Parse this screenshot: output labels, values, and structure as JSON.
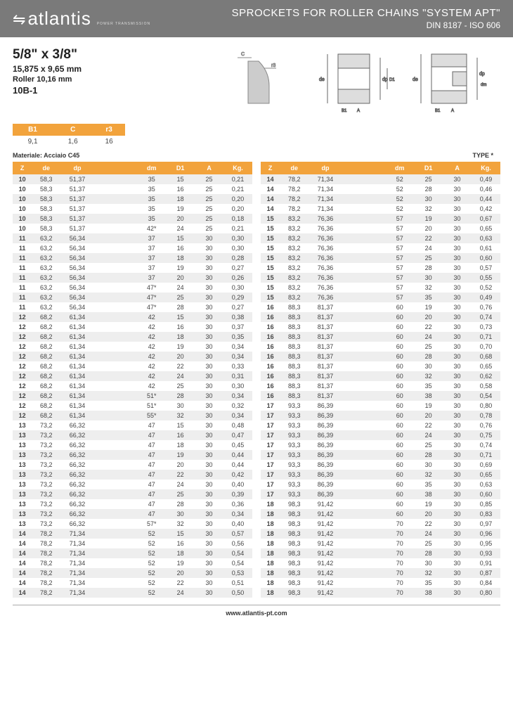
{
  "header": {
    "brand": "atlantis",
    "brand_sub": "POWER TRANSMISSION",
    "title": "SPROCKETS FOR ROLLER CHAINS \"SYSTEM APT\"",
    "subtitle": "DIN 8187 - ISO 606"
  },
  "spec": {
    "main": "5/8\" x 3/8\"",
    "sub": "15,875 x 9,65 mm",
    "roller": "Roller 10,16 mm",
    "code": "10B-1"
  },
  "mini": {
    "h": [
      "B1",
      "C",
      "r3"
    ],
    "v": [
      "9,1",
      "1,6",
      "16"
    ]
  },
  "material": "Materiale: Acciaio C45",
  "type_note": "TYPE *",
  "footer": "www.atlantis-pt.com",
  "cols": [
    "Z",
    "de",
    "dp",
    "dm",
    "D1",
    "A",
    "Kg."
  ],
  "colors": {
    "header_bg": "#7a7a7a",
    "accent": "#f2a33c",
    "row_odd": "#eeeeee",
    "row_even": "#ffffff"
  },
  "left": [
    [
      "10",
      "58,3",
      "51,37",
      "35",
      "15",
      "25",
      "0,21"
    ],
    [
      "10",
      "58,3",
      "51,37",
      "35",
      "16",
      "25",
      "0,21"
    ],
    [
      "10",
      "58,3",
      "51,37",
      "35",
      "18",
      "25",
      "0,20"
    ],
    [
      "10",
      "58,3",
      "51,37",
      "35",
      "19",
      "25",
      "0,20"
    ],
    [
      "10",
      "58,3",
      "51,37",
      "35",
      "20",
      "25",
      "0,18"
    ],
    [
      "10",
      "58,3",
      "51,37",
      "42*",
      "24",
      "25",
      "0,21"
    ],
    [
      "11",
      "63,2",
      "56,34",
      "37",
      "15",
      "30",
      "0,30"
    ],
    [
      "11",
      "63,2",
      "56,34",
      "37",
      "16",
      "30",
      "0,30"
    ],
    [
      "11",
      "63,2",
      "56,34",
      "37",
      "18",
      "30",
      "0,28"
    ],
    [
      "11",
      "63,2",
      "56,34",
      "37",
      "19",
      "30",
      "0,27"
    ],
    [
      "11",
      "63,2",
      "56,34",
      "37",
      "20",
      "30",
      "0,26"
    ],
    [
      "11",
      "63,2",
      "56,34",
      "47*",
      "24",
      "30",
      "0,30"
    ],
    [
      "11",
      "63,2",
      "56,34",
      "47*",
      "25",
      "30",
      "0,29"
    ],
    [
      "11",
      "63,2",
      "56,34",
      "47*",
      "28",
      "30",
      "0,27"
    ],
    [
      "12",
      "68,2",
      "61,34",
      "42",
      "15",
      "30",
      "0,38"
    ],
    [
      "12",
      "68,2",
      "61,34",
      "42",
      "16",
      "30",
      "0,37"
    ],
    [
      "12",
      "68,2",
      "61,34",
      "42",
      "18",
      "30",
      "0,35"
    ],
    [
      "12",
      "68,2",
      "61,34",
      "42",
      "19",
      "30",
      "0,34"
    ],
    [
      "12",
      "68,2",
      "61,34",
      "42",
      "20",
      "30",
      "0,34"
    ],
    [
      "12",
      "68,2",
      "61,34",
      "42",
      "22",
      "30",
      "0,33"
    ],
    [
      "12",
      "68,2",
      "61,34",
      "42",
      "24",
      "30",
      "0,31"
    ],
    [
      "12",
      "68,2",
      "61,34",
      "42",
      "25",
      "30",
      "0,30"
    ],
    [
      "12",
      "68,2",
      "61,34",
      "51*",
      "28",
      "30",
      "0,34"
    ],
    [
      "12",
      "68,2",
      "61,34",
      "51*",
      "30",
      "30",
      "0,32"
    ],
    [
      "12",
      "68,2",
      "61,34",
      "55*",
      "32",
      "30",
      "0,34"
    ],
    [
      "13",
      "73,2",
      "66,32",
      "47",
      "15",
      "30",
      "0,48"
    ],
    [
      "13",
      "73,2",
      "66,32",
      "47",
      "16",
      "30",
      "0,47"
    ],
    [
      "13",
      "73,2",
      "66,32",
      "47",
      "18",
      "30",
      "0,45"
    ],
    [
      "13",
      "73,2",
      "66,32",
      "47",
      "19",
      "30",
      "0,44"
    ],
    [
      "13",
      "73,2",
      "66,32",
      "47",
      "20",
      "30",
      "0,44"
    ],
    [
      "13",
      "73,2",
      "66,32",
      "47",
      "22",
      "30",
      "0,42"
    ],
    [
      "13",
      "73,2",
      "66,32",
      "47",
      "24",
      "30",
      "0,40"
    ],
    [
      "13",
      "73,2",
      "66,32",
      "47",
      "25",
      "30",
      "0,39"
    ],
    [
      "13",
      "73,2",
      "66,32",
      "47",
      "28",
      "30",
      "0,36"
    ],
    [
      "13",
      "73,2",
      "66,32",
      "47",
      "30",
      "30",
      "0,34"
    ],
    [
      "13",
      "73,2",
      "66,32",
      "57*",
      "32",
      "30",
      "0,40"
    ],
    [
      "14",
      "78,2",
      "71,34",
      "52",
      "15",
      "30",
      "0,57"
    ],
    [
      "14",
      "78,2",
      "71,34",
      "52",
      "16",
      "30",
      "0,56"
    ],
    [
      "14",
      "78,2",
      "71,34",
      "52",
      "18",
      "30",
      "0,54"
    ],
    [
      "14",
      "78,2",
      "71,34",
      "52",
      "19",
      "30",
      "0,54"
    ],
    [
      "14",
      "78,2",
      "71,34",
      "52",
      "20",
      "30",
      "0,53"
    ],
    [
      "14",
      "78,2",
      "71,34",
      "52",
      "22",
      "30",
      "0,51"
    ],
    [
      "14",
      "78,2",
      "71,34",
      "52",
      "24",
      "30",
      "0,50"
    ]
  ],
  "right": [
    [
      "14",
      "78,2",
      "71,34",
      "52",
      "25",
      "30",
      "0,49"
    ],
    [
      "14",
      "78,2",
      "71,34",
      "52",
      "28",
      "30",
      "0,46"
    ],
    [
      "14",
      "78,2",
      "71,34",
      "52",
      "30",
      "30",
      "0,44"
    ],
    [
      "14",
      "78,2",
      "71,34",
      "52",
      "32",
      "30",
      "0,42"
    ],
    [
      "15",
      "83,2",
      "76,36",
      "57",
      "19",
      "30",
      "0,67"
    ],
    [
      "15",
      "83,2",
      "76,36",
      "57",
      "20",
      "30",
      "0,65"
    ],
    [
      "15",
      "83,2",
      "76,36",
      "57",
      "22",
      "30",
      "0,63"
    ],
    [
      "15",
      "83,2",
      "76,36",
      "57",
      "24",
      "30",
      "0,61"
    ],
    [
      "15",
      "83,2",
      "76,36",
      "57",
      "25",
      "30",
      "0,60"
    ],
    [
      "15",
      "83,2",
      "76,36",
      "57",
      "28",
      "30",
      "0,57"
    ],
    [
      "15",
      "83,2",
      "76,36",
      "57",
      "30",
      "30",
      "0,55"
    ],
    [
      "15",
      "83,2",
      "76,36",
      "57",
      "32",
      "30",
      "0,52"
    ],
    [
      "15",
      "83,2",
      "76,36",
      "57",
      "35",
      "30",
      "0,49"
    ],
    [
      "16",
      "88,3",
      "81,37",
      "60",
      "19",
      "30",
      "0,76"
    ],
    [
      "16",
      "88,3",
      "81,37",
      "60",
      "20",
      "30",
      "0,74"
    ],
    [
      "16",
      "88,3",
      "81,37",
      "60",
      "22",
      "30",
      "0,73"
    ],
    [
      "16",
      "88,3",
      "81,37",
      "60",
      "24",
      "30",
      "0,71"
    ],
    [
      "16",
      "88,3",
      "81,37",
      "60",
      "25",
      "30",
      "0,70"
    ],
    [
      "16",
      "88,3",
      "81,37",
      "60",
      "28",
      "30",
      "0,68"
    ],
    [
      "16",
      "88,3",
      "81,37",
      "60",
      "30",
      "30",
      "0,65"
    ],
    [
      "16",
      "88,3",
      "81,37",
      "60",
      "32",
      "30",
      "0,62"
    ],
    [
      "16",
      "88,3",
      "81,37",
      "60",
      "35",
      "30",
      "0,58"
    ],
    [
      "16",
      "88,3",
      "81,37",
      "60",
      "38",
      "30",
      "0,54"
    ],
    [
      "17",
      "93,3",
      "86,39",
      "60",
      "19",
      "30",
      "0,80"
    ],
    [
      "17",
      "93,3",
      "86,39",
      "60",
      "20",
      "30",
      "0,78"
    ],
    [
      "17",
      "93,3",
      "86,39",
      "60",
      "22",
      "30",
      "0,76"
    ],
    [
      "17",
      "93,3",
      "86,39",
      "60",
      "24",
      "30",
      "0,75"
    ],
    [
      "17",
      "93,3",
      "86,39",
      "60",
      "25",
      "30",
      "0,74"
    ],
    [
      "17",
      "93,3",
      "86,39",
      "60",
      "28",
      "30",
      "0,71"
    ],
    [
      "17",
      "93,3",
      "86,39",
      "60",
      "30",
      "30",
      "0,69"
    ],
    [
      "17",
      "93,3",
      "86,39",
      "60",
      "32",
      "30",
      "0,65"
    ],
    [
      "17",
      "93,3",
      "86,39",
      "60",
      "35",
      "30",
      "0,63"
    ],
    [
      "17",
      "93,3",
      "86,39",
      "60",
      "38",
      "30",
      "0,60"
    ],
    [
      "18",
      "98,3",
      "91,42",
      "60",
      "19",
      "30",
      "0,85"
    ],
    [
      "18",
      "98,3",
      "91,42",
      "60",
      "20",
      "30",
      "0,83"
    ],
    [
      "18",
      "98,3",
      "91,42",
      "70",
      "22",
      "30",
      "0,97"
    ],
    [
      "18",
      "98,3",
      "91,42",
      "70",
      "24",
      "30",
      "0,96"
    ],
    [
      "18",
      "98,3",
      "91,42",
      "70",
      "25",
      "30",
      "0,95"
    ],
    [
      "18",
      "98,3",
      "91,42",
      "70",
      "28",
      "30",
      "0,93"
    ],
    [
      "18",
      "98,3",
      "91,42",
      "70",
      "30",
      "30",
      "0,91"
    ],
    [
      "18",
      "98,3",
      "91,42",
      "70",
      "32",
      "30",
      "0,87"
    ],
    [
      "18",
      "98,3",
      "91,42",
      "70",
      "35",
      "30",
      "0,84"
    ],
    [
      "18",
      "98,3",
      "91,42",
      "70",
      "38",
      "30",
      "0,80"
    ]
  ]
}
